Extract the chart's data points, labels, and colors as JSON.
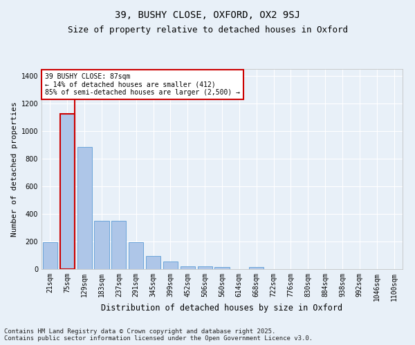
{
  "title1": "39, BUSHY CLOSE, OXFORD, OX2 9SJ",
  "title2": "Size of property relative to detached houses in Oxford",
  "xlabel": "Distribution of detached houses by size in Oxford",
  "ylabel": "Number of detached properties",
  "categories": [
    "21sqm",
    "75sqm",
    "129sqm",
    "183sqm",
    "237sqm",
    "291sqm",
    "345sqm",
    "399sqm",
    "452sqm",
    "506sqm",
    "560sqm",
    "614sqm",
    "668sqm",
    "722sqm",
    "776sqm",
    "830sqm",
    "884sqm",
    "938sqm",
    "992sqm",
    "1046sqm",
    "1100sqm"
  ],
  "values": [
    195,
    1125,
    885,
    350,
    350,
    195,
    95,
    55,
    20,
    20,
    15,
    0,
    15,
    0,
    0,
    0,
    0,
    0,
    0,
    0,
    0
  ],
  "bar_color": "#aec6e8",
  "bar_edge_color": "#5b9bd5",
  "highlight_bar_index": 1,
  "highlight_bar_edge_color": "#cc0000",
  "vline_color": "#cc0000",
  "annotation_text": "39 BUSHY CLOSE: 87sqm\n← 14% of detached houses are smaller (412)\n85% of semi-detached houses are larger (2,500) →",
  "annotation_box_color": "#ffffff",
  "annotation_box_edge_color": "#cc0000",
  "ylim": [
    0,
    1450
  ],
  "yticks": [
    0,
    200,
    400,
    600,
    800,
    1000,
    1200,
    1400
  ],
  "bg_color": "#e8f0f8",
  "grid_color": "#ffffff",
  "footnote": "Contains HM Land Registry data © Crown copyright and database right 2025.\nContains public sector information licensed under the Open Government Licence v3.0.",
  "title1_fontsize": 10,
  "title2_fontsize": 9,
  "xlabel_fontsize": 8.5,
  "ylabel_fontsize": 8,
  "tick_fontsize": 7,
  "annotation_fontsize": 7,
  "footnote_fontsize": 6.5
}
